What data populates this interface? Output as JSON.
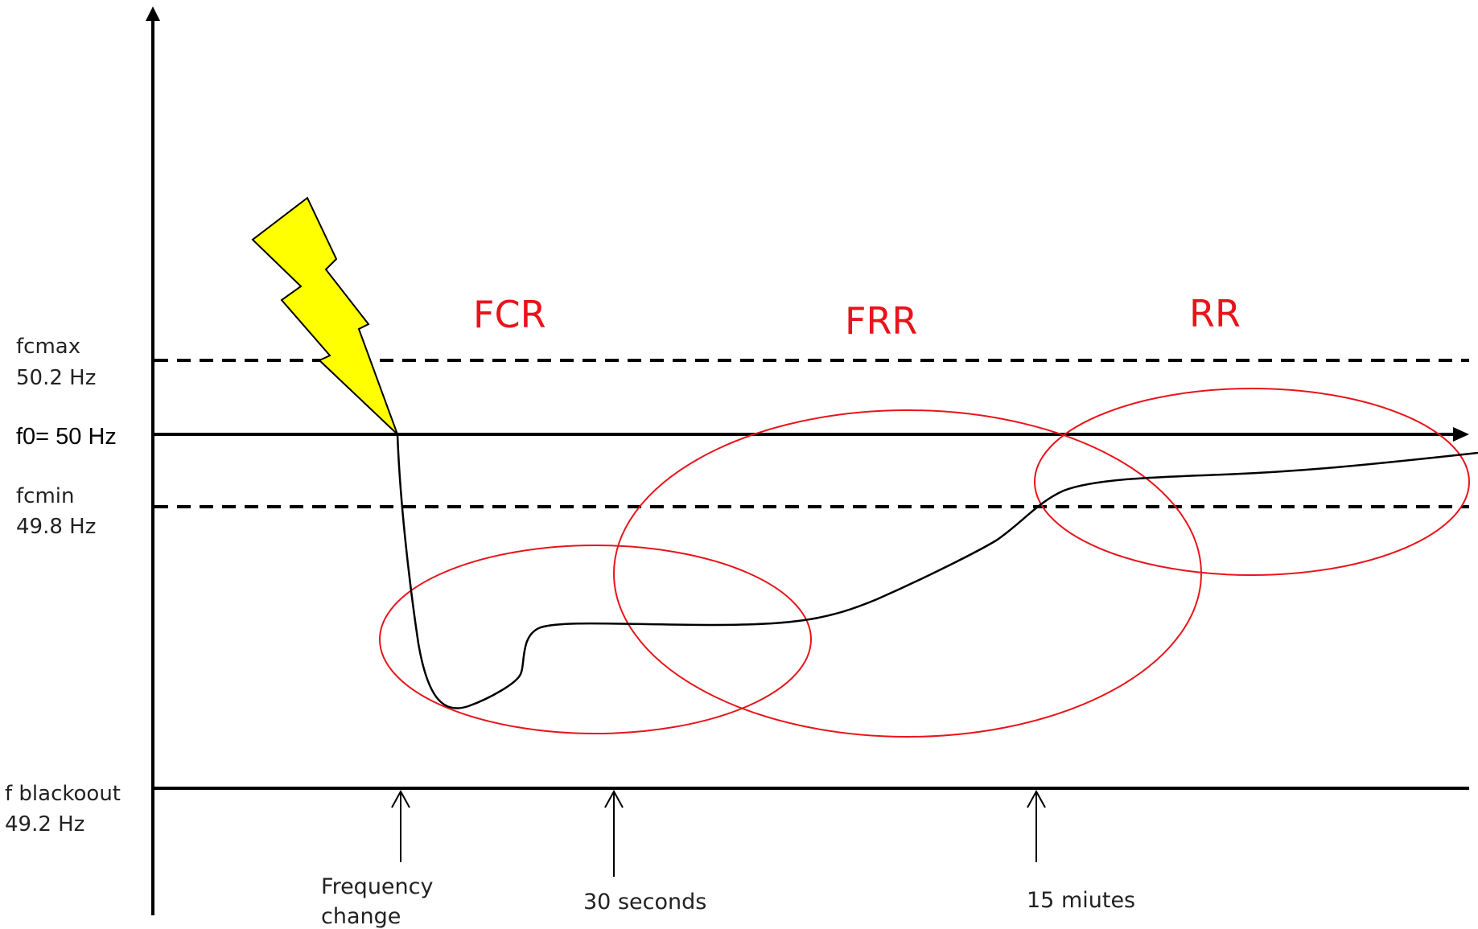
{
  "levels": {
    "fcmax_name": "fcmax",
    "fcmax_value": "50.2 Hz",
    "f0": "f0= 50 Hz",
    "fcmin_name": "fcmin",
    "fcmin_value": "49.8 Hz",
    "blackout_name": "f  blackoout",
    "blackout_value": "49.2 Hz"
  },
  "regions": {
    "fcr": "FCR",
    "frr": "FRR",
    "rr": "RR"
  },
  "times": {
    "frequency_change_line1": "Frequency",
    "frequency_change_line2": "change",
    "thirty_seconds": "30 seconds",
    "fifteen_minutes": "15 miutes"
  },
  "colors": {
    "axis": "#000000",
    "region": "#e8141b",
    "lightning_fill": "#ffff00"
  },
  "icons": {
    "lightning": "lightning-bolt-icon"
  }
}
